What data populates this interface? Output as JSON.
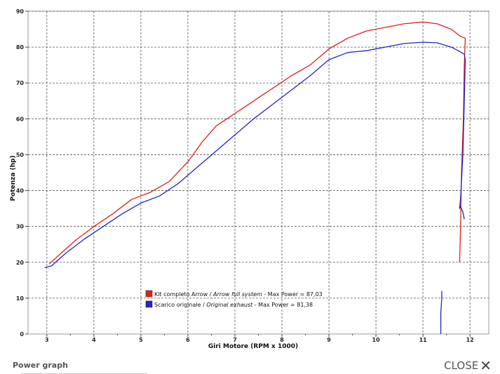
{
  "chart_data": {
    "type": "line",
    "title": "",
    "xlabel": "Giri Motore (RPM x 1000)",
    "ylabel": "Potenza (hp)",
    "xlim": [
      2.6,
      12.4
    ],
    "ylim": [
      0,
      90
    ],
    "xticks": [
      "3",
      "4",
      "5",
      "6",
      "7",
      "8",
      "9",
      "10",
      "11",
      "12"
    ],
    "yticks": [
      "0",
      "10",
      "20",
      "30",
      "40",
      "50",
      "60",
      "70",
      "80",
      "90"
    ],
    "grid": true,
    "legend_position": "bottom-center",
    "series": [
      {
        "name": "Kit completo Arrow / Arrow full system - Max Power = 87,03",
        "label_plain": "Kit completo Arrow / ",
        "label_italic": "Arrow full system",
        "label_tail": " - Max Power = 87,03",
        "color": "#e0201b",
        "x": [
          3.05,
          3.3,
          3.6,
          4.0,
          4.4,
          4.8,
          5.2,
          5.6,
          6.0,
          6.3,
          6.6,
          7.0,
          7.4,
          7.8,
          8.2,
          8.6,
          9.0,
          9.4,
          9.8,
          10.2,
          10.6,
          11.0,
          11.3,
          11.6,
          11.8,
          11.9,
          11.88,
          11.86,
          11.82,
          11.8,
          11.78
        ],
        "y": [
          19.5,
          22.5,
          26,
          30,
          33.5,
          37.5,
          39.5,
          42.5,
          48,
          53.5,
          58,
          61.5,
          65,
          68.5,
          72,
          75,
          79.5,
          82.5,
          84.5,
          85.5,
          86.5,
          87.0,
          86.5,
          85,
          83,
          82.5,
          75,
          60,
          45,
          30,
          20
        ]
      },
      {
        "name": "Scarico originale / Original exhaust - Max Power = 81,38",
        "label_plain": "Scarico originale / ",
        "label_italic": "Original exhaust",
        "label_tail": " - Max Power = 81,38",
        "color": "#2424c8",
        "x": [
          2.95,
          3.1,
          3.4,
          3.8,
          4.2,
          4.6,
          5.0,
          5.4,
          5.8,
          6.2,
          6.6,
          7.0,
          7.4,
          7.8,
          8.2,
          8.6,
          9.0,
          9.4,
          9.8,
          10.2,
          10.6,
          11.0,
          11.3,
          11.6,
          11.75,
          11.88,
          11.9,
          11.88,
          11.85,
          11.8,
          11.78,
          11.8,
          11.85,
          11.88
        ],
        "y": [
          18.5,
          19,
          22.5,
          26.5,
          30,
          33.5,
          36.5,
          38.5,
          42,
          46.5,
          51,
          55.5,
          60,
          64,
          68,
          72,
          76.5,
          78.5,
          79,
          80,
          81,
          81.38,
          81.2,
          80,
          79,
          78,
          76.5,
          65,
          50,
          38,
          35,
          35.5,
          34,
          32
        ]
      },
      {
        "name": "",
        "color": "#2424c8",
        "x": [
          11.38,
          11.38,
          11.38,
          11.4,
          11.4
        ],
        "y": [
          0,
          2,
          6,
          10,
          12
        ]
      }
    ]
  },
  "footer": {
    "caption": "Power graph",
    "close_label": "CLOSE",
    "close_icon": "close-x-icon"
  }
}
